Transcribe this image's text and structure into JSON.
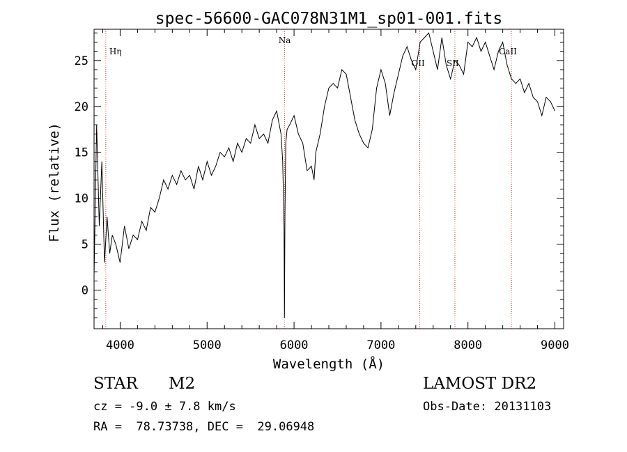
{
  "chart_data": {
    "type": "line",
    "title": "spec-56600-GAC078N31M1_sp01-001.fits",
    "xlabel": "Wavelength (Å)",
    "ylabel": "Flux (relative)",
    "xlim": [
      3700,
      9100
    ],
    "ylim": [
      -4.2,
      28.4
    ],
    "xticks": [
      4000,
      5000,
      6000,
      7000,
      8000,
      9000
    ],
    "yticks": [
      0,
      5,
      10,
      15,
      20,
      25
    ],
    "grid": false,
    "series": [
      {
        "x": [
          3700,
          3730,
          3760,
          3790,
          3820,
          3850,
          3880,
          3910,
          3950,
          4000,
          4050,
          4100,
          4150,
          4200,
          4250,
          4300,
          4350,
          4400,
          4450,
          4500,
          4550,
          4600,
          4650,
          4700,
          4750,
          4800,
          4850,
          4900,
          4950,
          5000,
          5050,
          5100,
          5150,
          5200,
          5250,
          5300,
          5350,
          5400,
          5450,
          5500,
          5550,
          5600,
          5650,
          5700,
          5750,
          5800,
          5850,
          5870,
          5885,
          5890,
          5895,
          5905,
          5920,
          5950,
          6000,
          6050,
          6100,
          6150,
          6200,
          6230,
          6250,
          6300,
          6350,
          6400,
          6450,
          6500,
          6550,
          6600,
          6650,
          6700,
          6750,
          6800,
          6850,
          6900,
          6950,
          7000,
          7050,
          7100,
          7150,
          7200,
          7250,
          7300,
          7350,
          7400,
          7450,
          7500,
          7550,
          7600,
          7650,
          7700,
          7750,
          7800,
          7850,
          7900,
          7950,
          8000,
          8050,
          8100,
          8150,
          8200,
          8250,
          8300,
          8350,
          8400,
          8450,
          8500,
          8550,
          8600,
          8650,
          8700,
          8750,
          8800,
          8850,
          8900,
          8950,
          9000
        ],
        "y": [
          1.5,
          18.0,
          7.0,
          14.0,
          3.0,
          8.0,
          4.0,
          6.0,
          5.0,
          3.0,
          7.0,
          4.5,
          6.0,
          5.5,
          7.5,
          6.5,
          9.0,
          8.5,
          10.0,
          12.0,
          11.0,
          12.5,
          11.5,
          13.0,
          12.0,
          12.5,
          11.0,
          13.5,
          12.0,
          14.0,
          12.5,
          13.5,
          15.0,
          14.5,
          15.5,
          14.0,
          16.0,
          15.0,
          16.5,
          16.0,
          18.0,
          16.5,
          17.0,
          16.0,
          18.5,
          19.5,
          17.0,
          14.0,
          7.0,
          -3.0,
          8.0,
          16.0,
          17.5,
          18.0,
          19.0,
          17.0,
          16.0,
          13.0,
          13.5,
          12.0,
          15.0,
          17.0,
          20.0,
          22.0,
          22.5,
          22.0,
          24.0,
          23.5,
          21.0,
          18.5,
          17.0,
          16.0,
          15.5,
          17.5,
          22.0,
          24.0,
          22.5,
          19.0,
          21.5,
          23.5,
          25.5,
          26.5,
          25.0,
          24.0,
          27.0,
          27.5,
          28.0,
          26.0,
          24.0,
          27.5,
          24.5,
          23.0,
          25.0,
          24.5,
          23.5,
          27.0,
          26.5,
          27.5,
          26.0,
          27.0,
          25.5,
          24.0,
          26.0,
          27.0,
          24.5,
          23.0,
          22.5,
          23.0,
          21.5,
          22.5,
          21.0,
          20.5,
          19.0,
          21.0,
          20.5,
          19.5
        ]
      }
    ],
    "lines": [
      {
        "label": "Hη",
        "x": 3835
      },
      {
        "label": "Na",
        "x": 5892
      },
      {
        "label": "OII",
        "x": 7445
      },
      {
        "label": "SII",
        "x": 7850
      },
      {
        "label": "CaII",
        "x": 8500
      }
    ]
  },
  "info": {
    "class_label": "STAR",
    "subclass": "M2",
    "cz": "cz = -9.0 ± 7.8 km/s",
    "radec": "RA =  78.73738, DEC =  29.06948",
    "survey": "LAMOST DR2",
    "obs_date": "Obs-Date: 20131103"
  },
  "colors": {
    "spectrum": "#000000",
    "line_marker": "#cc3333"
  }
}
